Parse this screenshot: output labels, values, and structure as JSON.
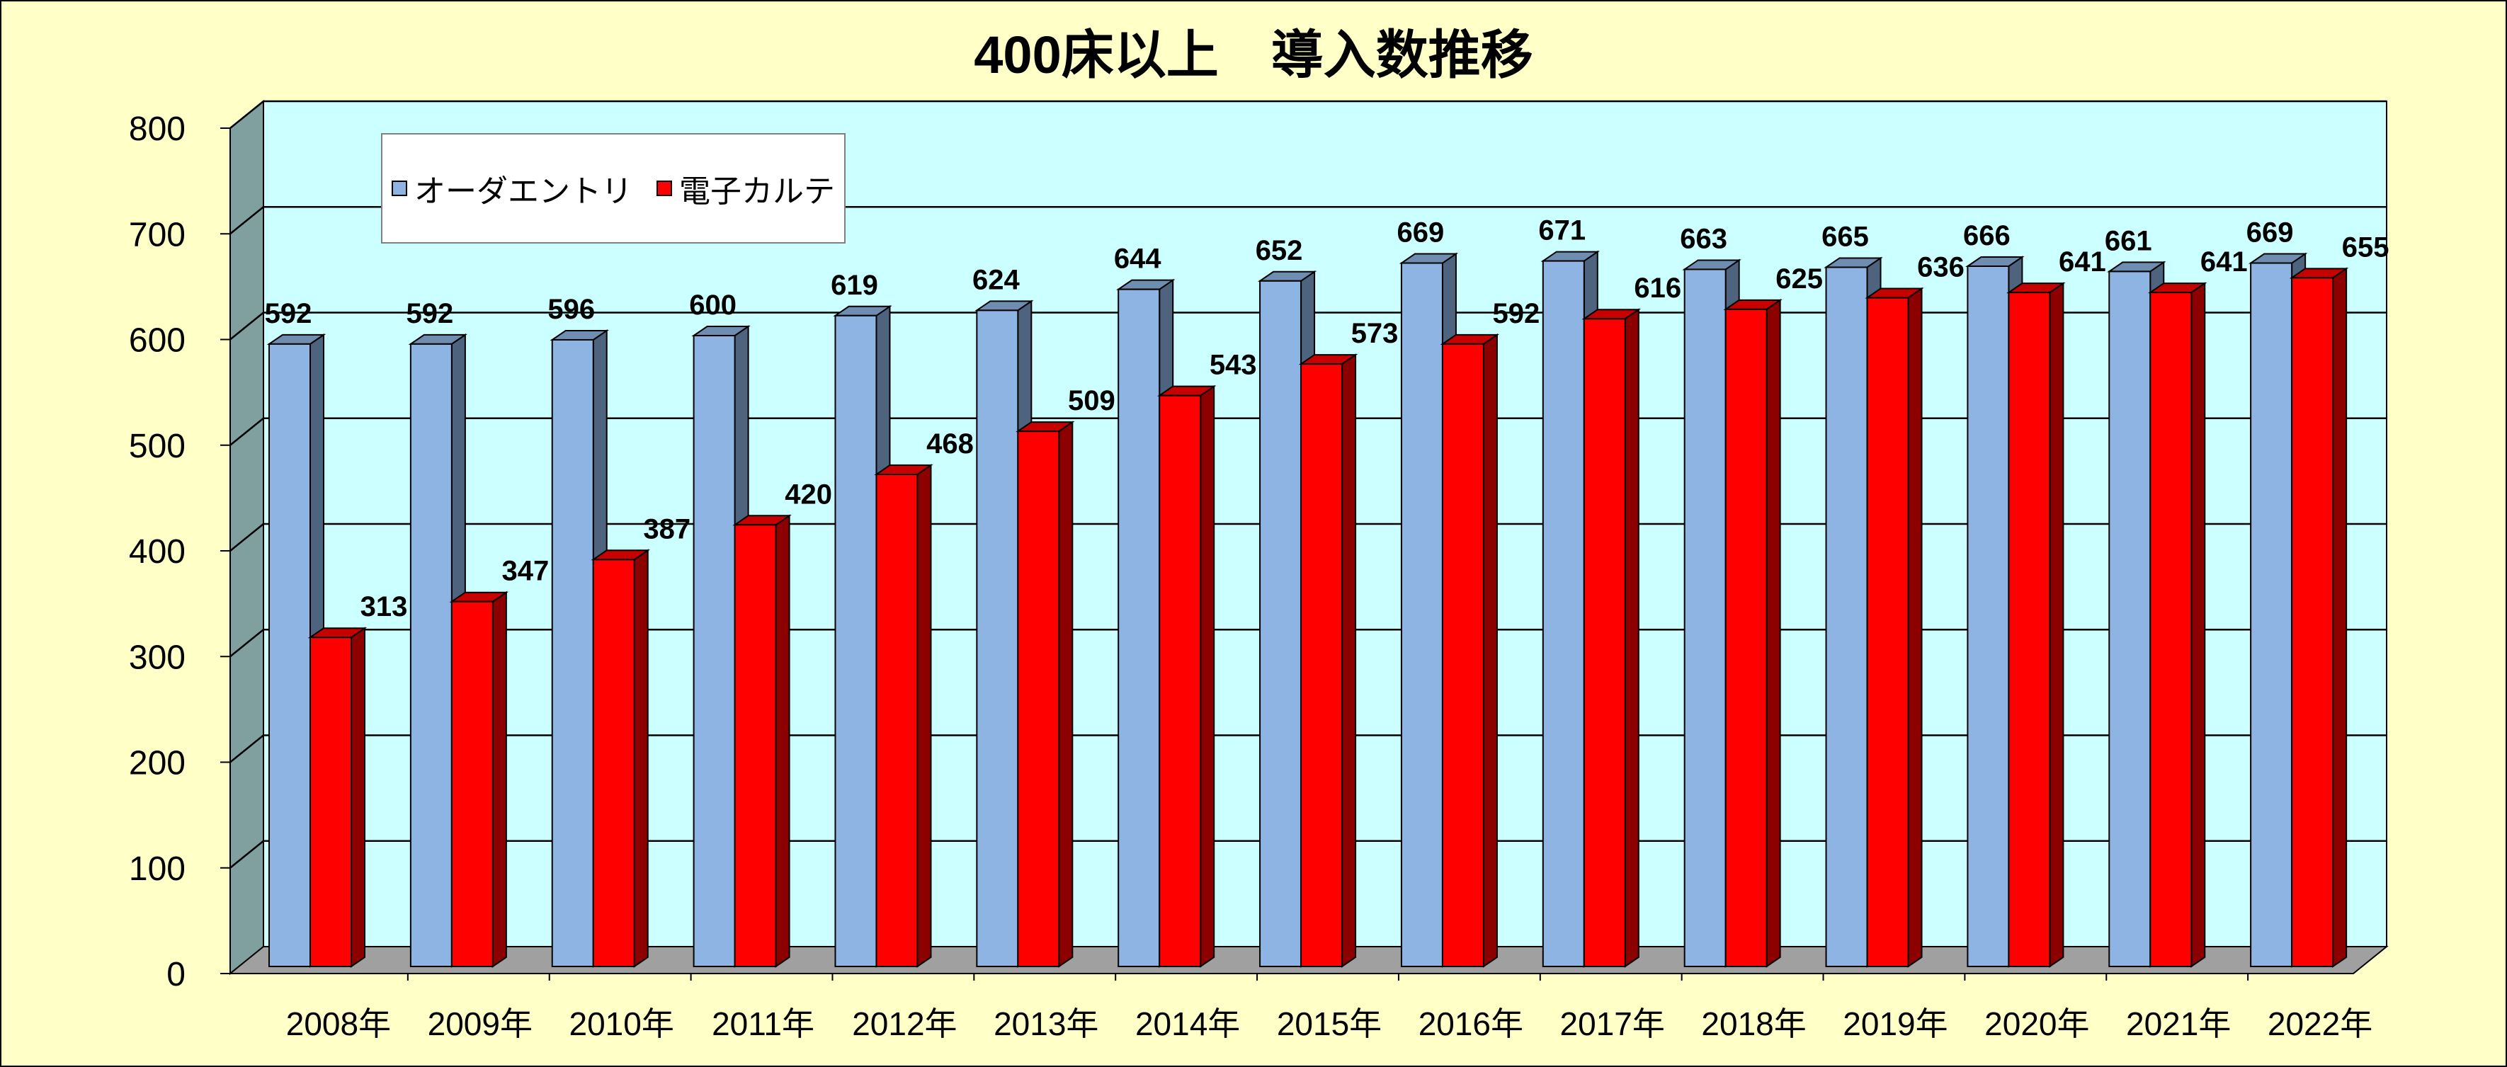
{
  "chart_data": {
    "type": "bar",
    "title": "400床以上　導入数推移",
    "categories": [
      "2008年",
      "2009年",
      "2010年",
      "2011年",
      "2012年",
      "2013年",
      "2014年",
      "2015年",
      "2016年",
      "2017年",
      "2018年",
      "2019年",
      "2020年",
      "2021年",
      "2022年"
    ],
    "series": [
      {
        "name": "オーダエントリ",
        "color": "#8eb4e3",
        "values": [
          592,
          592,
          596,
          600,
          619,
          624,
          644,
          652,
          669,
          671,
          663,
          665,
          666,
          661,
          669
        ]
      },
      {
        "name": "電子カルテ",
        "color": "#ff0000",
        "values": [
          313,
          347,
          387,
          420,
          468,
          509,
          543,
          573,
          592,
          616,
          625,
          636,
          641,
          641,
          655
        ]
      }
    ],
    "ylim": [
      0,
      800
    ],
    "yticks": [
      0,
      100,
      200,
      300,
      400,
      500,
      600,
      700,
      800
    ],
    "grid": true,
    "legend_position": "top-left",
    "plot_background": "#ccffff",
    "page_background": "#ffffc8",
    "style": "3d-column"
  }
}
